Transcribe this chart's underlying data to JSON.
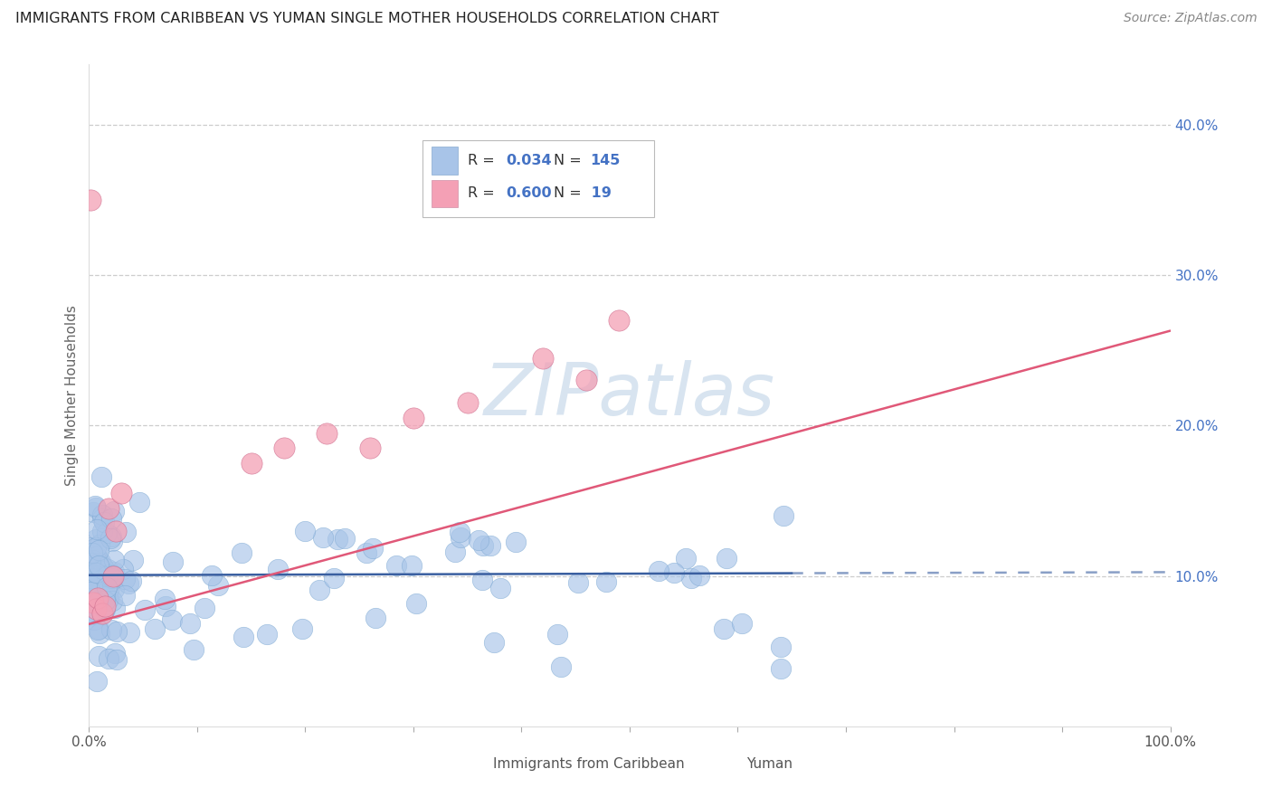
{
  "title": "IMMIGRANTS FROM CARIBBEAN VS YUMAN SINGLE MOTHER HOUSEHOLDS CORRELATION CHART",
  "source": "Source: ZipAtlas.com",
  "ylabel": "Single Mother Households",
  "xlim": [
    0,
    1.0
  ],
  "ylim": [
    0,
    0.44
  ],
  "yticks": [
    0.1,
    0.2,
    0.3,
    0.4
  ],
  "ytick_labels": [
    "10.0%",
    "20.0%",
    "30.0%",
    "40.0%"
  ],
  "color_blue": "#a8c4e8",
  "color_pink": "#f4a0b5",
  "line_blue": "#3a5fa0",
  "line_pink": "#e05878",
  "background_color": "#ffffff",
  "grid_color": "#c8c8c8",
  "watermark_color": "#d8e4f0",
  "blue_line_solid_end": 0.65,
  "pink_line_end": 1.0,
  "blue_intercept": 0.1005,
  "blue_slope": 0.002,
  "pink_intercept": 0.068,
  "pink_slope": 0.195
}
